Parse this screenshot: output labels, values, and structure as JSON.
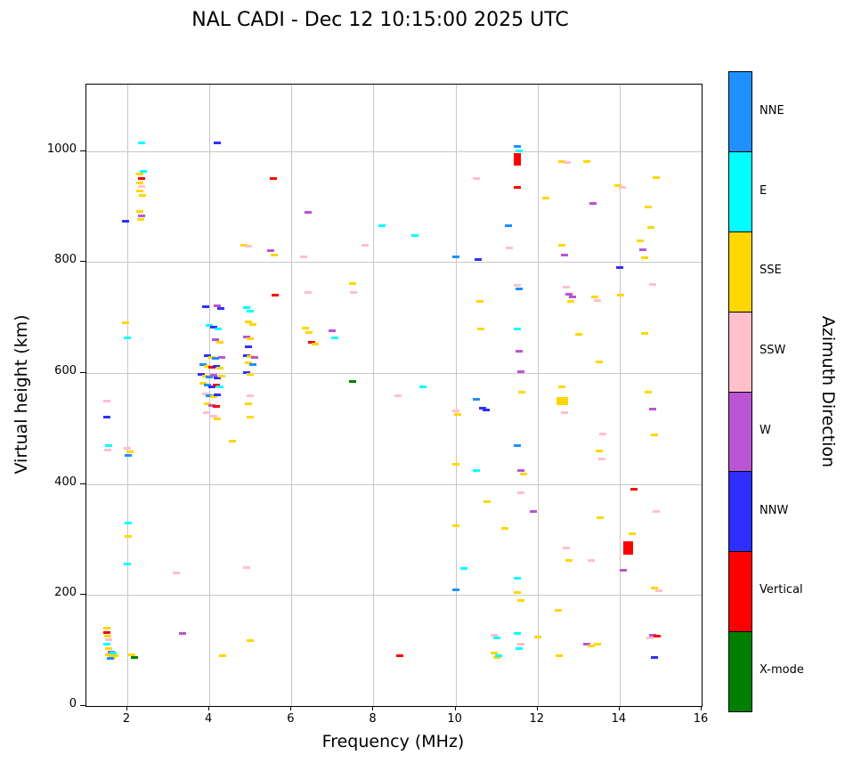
{
  "title": "NAL CADI - Dec 12 10:15:00 2025 UTC",
  "axes": {
    "xlabel": "Frequency (MHz)",
    "ylabel": "Virtual height (km)"
  },
  "colorbar": {
    "label": "Azimuth Direction"
  },
  "chart_data": {
    "type": "scatter",
    "title": "NAL CADI - Dec 12 10:15:00 2025 UTC",
    "xlabel": "Frequency (MHz)",
    "ylabel": "Virtual height (km)",
    "xlim": [
      1,
      16
    ],
    "ylim": [
      0,
      1120
    ],
    "xticks": [
      2,
      4,
      6,
      8,
      10,
      12,
      14,
      16
    ],
    "yticks": [
      0,
      200,
      400,
      600,
      800,
      1000
    ],
    "grid": true,
    "legend_position": "right-colorbar",
    "legend_title": "Azimuth Direction",
    "categories": [
      "NNE",
      "E",
      "SSE",
      "SSW",
      "W",
      "NNW",
      "Vertical",
      "X-mode"
    ],
    "colors": {
      "NNE": "#1E90FF",
      "E": "#00FFFF",
      "SSE": "#FFD700",
      "SSW": "#FFC0CB",
      "W": "#BA55D3",
      "NNW": "#2E2EFF",
      "Vertical": "#FF0000",
      "X-mode": "#008000"
    },
    "point_units": "[frequency_MHz, virtual_height_km, azimuth_category, optional_width_px, optional_height_px]",
    "points": [
      [
        1.5,
        140,
        "SSE"
      ],
      [
        1.5,
        133,
        "Vertical"
      ],
      [
        1.52,
        126,
        "SSE"
      ],
      [
        1.55,
        119,
        "SSW"
      ],
      [
        1.5,
        111,
        "E"
      ],
      [
        1.55,
        104,
        "SSE"
      ],
      [
        1.6,
        97,
        "W"
      ],
      [
        1.55,
        92,
        "SSE"
      ],
      [
        1.62,
        88,
        "SSE"
      ],
      [
        1.7,
        90,
        "SSE"
      ],
      [
        1.66,
        96,
        "E"
      ],
      [
        1.58,
        86,
        "NNE"
      ],
      [
        2.1,
        92,
        "SSE"
      ],
      [
        2.18,
        88,
        "X-mode"
      ],
      [
        1.5,
        550,
        "SSW"
      ],
      [
        1.5,
        521,
        "NNW"
      ],
      [
        1.55,
        470,
        "E"
      ],
      [
        1.52,
        462,
        "SSW"
      ],
      [
        1.95,
        873,
        "NNW"
      ],
      [
        1.95,
        690,
        "SSE"
      ],
      [
        2.0,
        663,
        "E"
      ],
      [
        2.0,
        465,
        "SSW"
      ],
      [
        2.06,
        458,
        "SSE"
      ],
      [
        2.02,
        452,
        "NNE"
      ],
      [
        2.0,
        256,
        "E"
      ],
      [
        2.02,
        330,
        "E"
      ],
      [
        2.02,
        305,
        "SSE"
      ],
      [
        2.35,
        1015,
        "E"
      ],
      [
        2.38,
        963,
        "E"
      ],
      [
        2.3,
        958,
        "SSE"
      ],
      [
        2.34,
        950,
        "Vertical"
      ],
      [
        2.3,
        943,
        "SSE"
      ],
      [
        2.35,
        936,
        "SSW"
      ],
      [
        2.3,
        928,
        "SSE"
      ],
      [
        2.36,
        921,
        "SSE"
      ],
      [
        2.3,
        891,
        "SSE"
      ],
      [
        2.35,
        884,
        "W"
      ],
      [
        2.32,
        877,
        "SSE"
      ],
      [
        3.2,
        240,
        "SSW"
      ],
      [
        3.35,
        130,
        "W"
      ],
      [
        3.9,
        720,
        "NNW"
      ],
      [
        4.2,
        722,
        "W"
      ],
      [
        4.28,
        717,
        "NNW"
      ],
      [
        4.0,
        686,
        "E"
      ],
      [
        4.1,
        682,
        "NNW"
      ],
      [
        4.22,
        679,
        "E"
      ],
      [
        4.15,
        661,
        "W"
      ],
      [
        4.25,
        655,
        "SSE"
      ],
      [
        3.95,
        631,
        "NNW"
      ],
      [
        4.05,
        628,
        "SSE"
      ],
      [
        4.15,
        626,
        "NNE"
      ],
      [
        4.3,
        628,
        "W"
      ],
      [
        3.85,
        616,
        "NNE"
      ],
      [
        3.95,
        612,
        "SSE"
      ],
      [
        4.05,
        610,
        "Vertical"
      ],
      [
        4.16,
        612,
        "NNW"
      ],
      [
        4.26,
        609,
        "SSE"
      ],
      [
        3.8,
        598,
        "NNW"
      ],
      [
        3.9,
        595,
        "SSE"
      ],
      [
        4.0,
        593,
        "NNE"
      ],
      [
        4.1,
        596,
        "W"
      ],
      [
        4.2,
        592,
        "NNW"
      ],
      [
        4.3,
        595,
        "SSE"
      ],
      [
        3.85,
        581,
        "SSE"
      ],
      [
        3.95,
        578,
        "NNE"
      ],
      [
        4.05,
        576,
        "NNW"
      ],
      [
        4.16,
        578,
        "Vertical"
      ],
      [
        4.26,
        575,
        "E"
      ],
      [
        3.9,
        562,
        "SSW"
      ],
      [
        4.0,
        560,
        "NNE"
      ],
      [
        4.1,
        558,
        "SSE"
      ],
      [
        4.2,
        561,
        "NNW"
      ],
      [
        3.96,
        545,
        "SSE"
      ],
      [
        4.06,
        542,
        "W"
      ],
      [
        4.16,
        540,
        "Vertical"
      ],
      [
        3.92,
        528,
        "SSW"
      ],
      [
        4.1,
        522,
        "SSW"
      ],
      [
        4.2,
        518,
        "SSE"
      ],
      [
        4.2,
        1015,
        "NNW"
      ],
      [
        4.32,
        90,
        "SSE"
      ],
      [
        4.55,
        478,
        "SSE"
      ],
      [
        4.85,
        831,
        "SSE"
      ],
      [
        4.96,
        828,
        "SSW"
      ],
      [
        4.9,
        718,
        "E"
      ],
      [
        5.0,
        712,
        "E"
      ],
      [
        4.95,
        692,
        "SSE"
      ],
      [
        5.06,
        688,
        "SSE"
      ],
      [
        4.9,
        665,
        "W"
      ],
      [
        5.0,
        662,
        "SSE"
      ],
      [
        4.95,
        648,
        "NNW"
      ],
      [
        4.9,
        632,
        "NNW"
      ],
      [
        5.0,
        630,
        "SSE"
      ],
      [
        5.1,
        628,
        "W"
      ],
      [
        4.95,
        618,
        "SSE"
      ],
      [
        5.06,
        615,
        "NNE"
      ],
      [
        4.9,
        601,
        "NNW"
      ],
      [
        5.0,
        598,
        "SSE"
      ],
      [
        5.0,
        560,
        "SSW"
      ],
      [
        4.95,
        545,
        "SSE"
      ],
      [
        5.0,
        521,
        "SSE"
      ],
      [
        4.9,
        250,
        "SSW"
      ],
      [
        5.0,
        118,
        "SSE"
      ],
      [
        5.55,
        950,
        "Vertical"
      ],
      [
        5.5,
        821,
        "W"
      ],
      [
        5.58,
        812,
        "SSE"
      ],
      [
        5.6,
        740,
        "Vertical"
      ],
      [
        6.4,
        890,
        "W"
      ],
      [
        6.3,
        810,
        "SSW"
      ],
      [
        6.4,
        745,
        "SSW"
      ],
      [
        6.35,
        681,
        "SSE"
      ],
      [
        6.42,
        673,
        "SSE"
      ],
      [
        6.5,
        656,
        "Vertical"
      ],
      [
        6.58,
        652,
        "SSE"
      ],
      [
        7.0,
        676,
        "W"
      ],
      [
        7.06,
        663,
        "E"
      ],
      [
        7.5,
        762,
        "SSE"
      ],
      [
        7.52,
        746,
        "SSW"
      ],
      [
        7.5,
        585,
        "X-mode"
      ],
      [
        7.8,
        830,
        "SSW"
      ],
      [
        8.2,
        865,
        "E"
      ],
      [
        8.6,
        560,
        "SSW"
      ],
      [
        8.65,
        90,
        "Vertical"
      ],
      [
        9.0,
        848,
        "E"
      ],
      [
        9.2,
        575,
        "E"
      ],
      [
        10.0,
        810,
        "NNE"
      ],
      [
        10.0,
        532,
        "SSW"
      ],
      [
        10.06,
        525,
        "SSE"
      ],
      [
        10.0,
        435,
        "SSE"
      ],
      [
        10.0,
        325,
        "SSE"
      ],
      [
        10.0,
        210,
        "NNE"
      ],
      [
        10.2,
        248,
        "E"
      ],
      [
        10.5,
        950,
        "SSW"
      ],
      [
        10.55,
        805,
        "NNW"
      ],
      [
        10.6,
        730,
        "SSE"
      ],
      [
        10.62,
        680,
        "SSE"
      ],
      [
        10.5,
        552,
        "NNE"
      ],
      [
        10.66,
        536,
        "NNW"
      ],
      [
        10.74,
        533,
        "NNW"
      ],
      [
        10.5,
        425,
        "E"
      ],
      [
        10.76,
        368,
        "SSE"
      ],
      [
        10.95,
        128,
        "SSW"
      ],
      [
        11.0,
        122,
        "E"
      ],
      [
        10.95,
        95,
        "SSE"
      ],
      [
        11.0,
        88,
        "SSE"
      ],
      [
        11.06,
        91,
        "E"
      ],
      [
        11.2,
        320,
        "SSE"
      ],
      [
        11.3,
        865,
        "NNE"
      ],
      [
        11.32,
        825,
        "SSW"
      ],
      [
        11.5,
        1008,
        "NNE"
      ],
      [
        11.56,
        1000,
        "E"
      ],
      [
        11.5,
        985,
        "Vertical",
        8,
        14
      ],
      [
        11.5,
        935,
        "Vertical"
      ],
      [
        11.5,
        758,
        "SSW"
      ],
      [
        11.56,
        752,
        "NNE"
      ],
      [
        11.5,
        680,
        "E"
      ],
      [
        11.56,
        640,
        "W"
      ],
      [
        11.6,
        602,
        "W"
      ],
      [
        11.62,
        565,
        "SSE"
      ],
      [
        11.5,
        470,
        "NNE"
      ],
      [
        11.6,
        425,
        "W"
      ],
      [
        11.66,
        418,
        "SSE"
      ],
      [
        11.6,
        385,
        "SSW"
      ],
      [
        11.9,
        350,
        "W"
      ],
      [
        11.5,
        230,
        "E"
      ],
      [
        11.5,
        205,
        "SSE"
      ],
      [
        11.6,
        190,
        "SSE"
      ],
      [
        11.5,
        130,
        "E"
      ],
      [
        11.6,
        112,
        "SSW"
      ],
      [
        11.56,
        104,
        "E"
      ],
      [
        12.0,
        125,
        "SSE"
      ],
      [
        12.2,
        915,
        "SSE"
      ],
      [
        12.6,
        982,
        "SSE"
      ],
      [
        12.73,
        980,
        "SSW"
      ],
      [
        12.6,
        830,
        "SSE"
      ],
      [
        12.66,
        812,
        "W"
      ],
      [
        12.7,
        755,
        "SSW"
      ],
      [
        12.76,
        742,
        "W"
      ],
      [
        12.86,
        738,
        "W"
      ],
      [
        12.8,
        730,
        "SSE"
      ],
      [
        12.6,
        575,
        "SSE"
      ],
      [
        12.6,
        550,
        "SSE",
        13,
        9
      ],
      [
        12.66,
        528,
        "SSW"
      ],
      [
        12.7,
        285,
        "SSW"
      ],
      [
        12.76,
        262,
        "SSE"
      ],
      [
        12.5,
        172,
        "SSE"
      ],
      [
        12.52,
        90,
        "SSE"
      ],
      [
        13.0,
        670,
        "SSE"
      ],
      [
        13.2,
        982,
        "SSE"
      ],
      [
        13.35,
        905,
        "W"
      ],
      [
        13.4,
        738,
        "SSE"
      ],
      [
        13.46,
        731,
        "SSW"
      ],
      [
        13.5,
        620,
        "SSE"
      ],
      [
        13.5,
        460,
        "SSE"
      ],
      [
        13.56,
        445,
        "SSW"
      ],
      [
        13.52,
        340,
        "SSE"
      ],
      [
        13.3,
        262,
        "SSW"
      ],
      [
        13.6,
        490,
        "SSW"
      ],
      [
        13.2,
        112,
        "W"
      ],
      [
        13.3,
        108,
        "SSE"
      ],
      [
        13.46,
        112,
        "SSE"
      ],
      [
        13.95,
        938,
        "SSE"
      ],
      [
        14.06,
        935,
        "SSW"
      ],
      [
        14.0,
        790,
        "NNW"
      ],
      [
        14.02,
        740,
        "SSE"
      ],
      [
        14.1,
        245,
        "W"
      ],
      [
        14.2,
        285,
        "Vertical",
        11,
        15
      ],
      [
        14.35,
        390,
        "Vertical"
      ],
      [
        14.3,
        310,
        "SSE"
      ],
      [
        14.5,
        838,
        "SSE"
      ],
      [
        14.56,
        822,
        "W"
      ],
      [
        14.62,
        808,
        "SSE"
      ],
      [
        14.7,
        900,
        "SSE"
      ],
      [
        14.76,
        862,
        "SSE"
      ],
      [
        14.8,
        760,
        "SSW"
      ],
      [
        14.9,
        952,
        "SSE"
      ],
      [
        14.6,
        672,
        "SSE"
      ],
      [
        14.7,
        565,
        "SSE"
      ],
      [
        14.8,
        535,
        "W"
      ],
      [
        14.86,
        488,
        "SSE"
      ],
      [
        14.9,
        350,
        "SSW"
      ],
      [
        14.86,
        212,
        "SSE"
      ],
      [
        14.96,
        208,
        "SSW"
      ],
      [
        14.8,
        128,
        "W"
      ],
      [
        14.92,
        126,
        "Vertical"
      ],
      [
        14.74,
        122,
        "SSW"
      ],
      [
        14.86,
        88,
        "NNW"
      ]
    ]
  }
}
